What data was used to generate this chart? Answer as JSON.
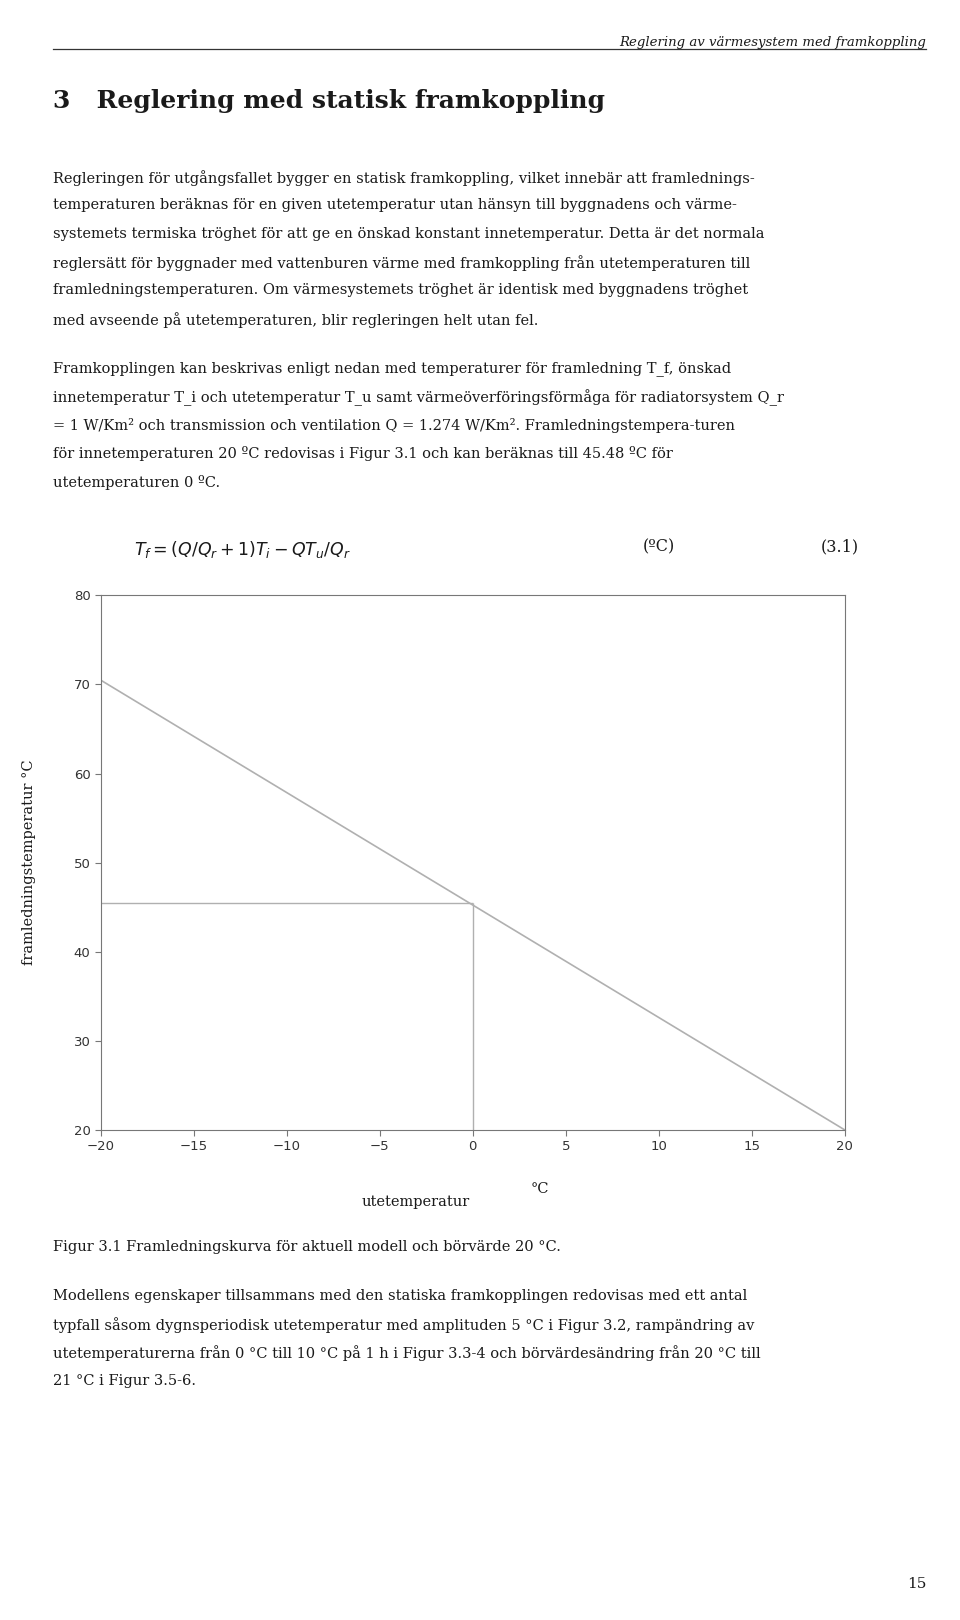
{
  "header_text": "Reglering av värmesystem med framkoppling",
  "chapter_num": "3",
  "chapter_title": "Reglering med statisk framkoppling",
  "para1_lines": [
    "Regleringen för utgångsfallet bygger en statisk framkoppling, vilket innebär att framlednings-",
    "temperaturen beräknas för en given utetemperatur utan hänsyn till byggnadens och värme-",
    "systemets termiska tröghet för att ge en önskad konstant innetemperatur. Detta är det normala",
    "reglersätt för byggnader med vattenburen värme med framkoppling från utetemperaturen till",
    "framledningstemperaturen. Om värmesystemets tröghet är identisk med byggnadens tröghet",
    "med avseende på utetemperaturen, blir regleringen helt utan fel."
  ],
  "para2_lines": [
    "Framkopplingen kan beskrivas enligt nedan med temperaturer för framledning T_f, önskad",
    "innetemperatur T_i och utetemperatur T_u samt värmeöverföringsförmåga för radiatorsystem Q_r",
    "= 1 W/Km² och transmission och ventilation Q = 1.274 W/Km². Framledningstempera-turen",
    "för innetemperaturen 20 ºC redovisas i Figur 3.1 och kan beräknas till 45.48 ºC för",
    "utetemperaturen 0 ºC."
  ],
  "formula_left": "T_f = (Q/Q_r+1)T_i - QT_u/Q_r",
  "formula_unit": "(ºC)",
  "formula_ref": "(3.1)",
  "line_x": [
    -20,
    20
  ],
  "line_y": [
    70.48,
    20.0
  ],
  "hline_x": [
    -20,
    0
  ],
  "hline_y": [
    45.48,
    45.48
  ],
  "vline_x": [
    0,
    0
  ],
  "vline_y": [
    20,
    45.48
  ],
  "xlim": [
    -20,
    20
  ],
  "ylim": [
    20,
    80
  ],
  "xticks": [
    -20,
    -15,
    -10,
    -5,
    0,
    5,
    10,
    15,
    20
  ],
  "yticks": [
    20,
    30,
    40,
    50,
    60,
    70,
    80
  ],
  "xlabel1": "utetemperatur",
  "xlabel2": "°C",
  "ylabel": "framledningstemperatur °C",
  "figure_caption": "Figur 3.1 Framledningskurva för aktuell modell och börvärde 20 °C.",
  "para3_lines": [
    "Modellens egenskaper tillsammans med den statiska framkopplingen redovisas med ett antal",
    "typfall såsom dygnsperiodisk utetemperatur med amplituden 5 °C i Figur 3.2, rampändring av",
    "utetemperaturerna från 0 °C till 10 °C på 1 h i Figur 3.3-4 och börvärdesändring från 20 °C till",
    "21 °C i Figur 3.5-6."
  ],
  "page_number": "15",
  "line_color": "#b0b0b0",
  "text_color": "#1a1a1a",
  "bg_color": "#ffffff",
  "header_line_color": "#333333",
  "spine_color": "#777777",
  "tick_color": "#333333"
}
